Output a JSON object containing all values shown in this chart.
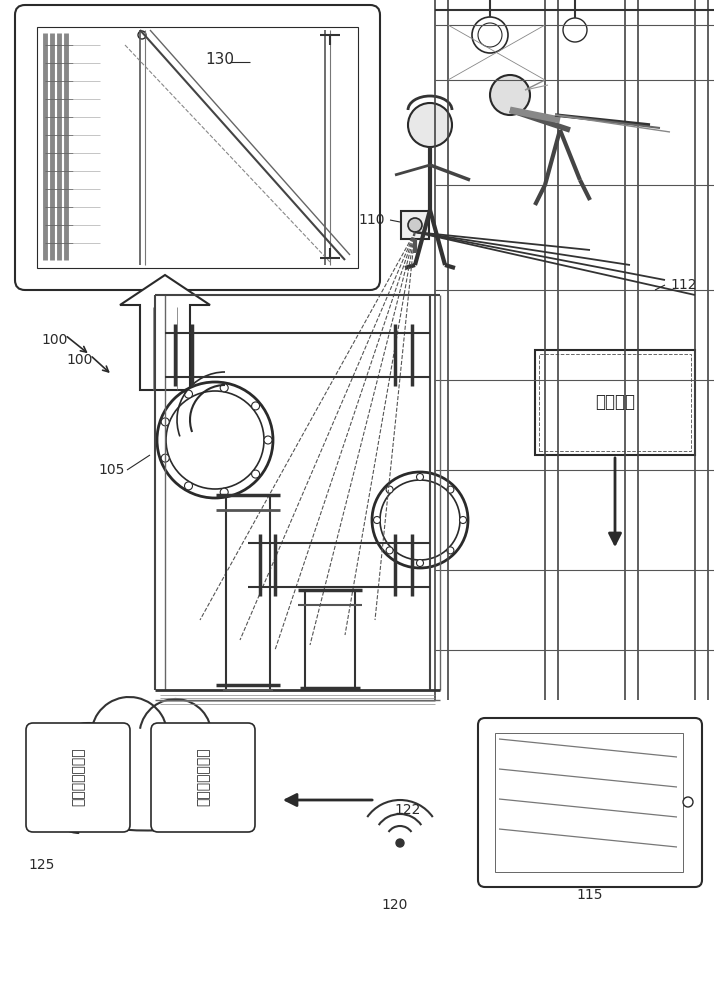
{
  "bg_color": "#ffffff",
  "lc": "#2a2a2a",
  "cloud_text1": "数据建模与分析",
  "cloud_text2": "数据连接与插入",
  "box_text": "预测软件",
  "label_100": "100",
  "label_105": "105",
  "label_110": "110",
  "label_112": "112",
  "label_115": "115",
  "label_120": "120",
  "label_122": "122",
  "label_125": "125",
  "label_130": "130"
}
